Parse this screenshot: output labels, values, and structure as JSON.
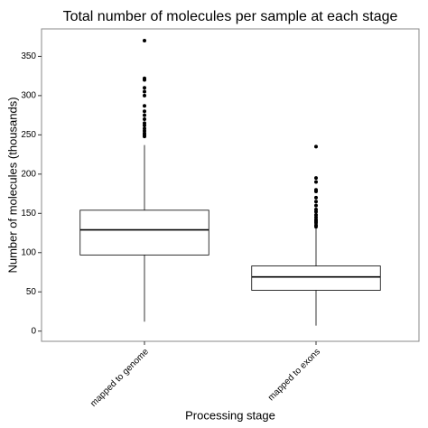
{
  "chart_data": {
    "type": "box",
    "title": "Total number of molecules per sample at each stage",
    "xlabel": "Processing stage",
    "ylabel": "Number of molecules (thousands)",
    "categories": [
      "mapped to genome",
      "mapped to exons"
    ],
    "boxes": [
      {
        "min": 12,
        "q1": 97,
        "median": 129,
        "q3": 154,
        "max": 237,
        "outliers": [
          370,
          322,
          320,
          310,
          305,
          300,
          287,
          280,
          275,
          270,
          265,
          262,
          258,
          255,
          252,
          250,
          248
        ]
      },
      {
        "min": 7,
        "q1": 52,
        "median": 69,
        "q3": 83,
        "max": 131,
        "outliers": [
          235,
          195,
          190,
          180,
          178,
          170,
          165,
          160,
          155,
          152,
          148,
          145,
          142,
          140,
          138,
          135,
          133
        ]
      }
    ],
    "ylim": [
      -13,
      385
    ],
    "yticks": [
      0,
      50,
      100,
      150,
      200,
      250,
      300,
      350
    ],
    "grid": false
  }
}
